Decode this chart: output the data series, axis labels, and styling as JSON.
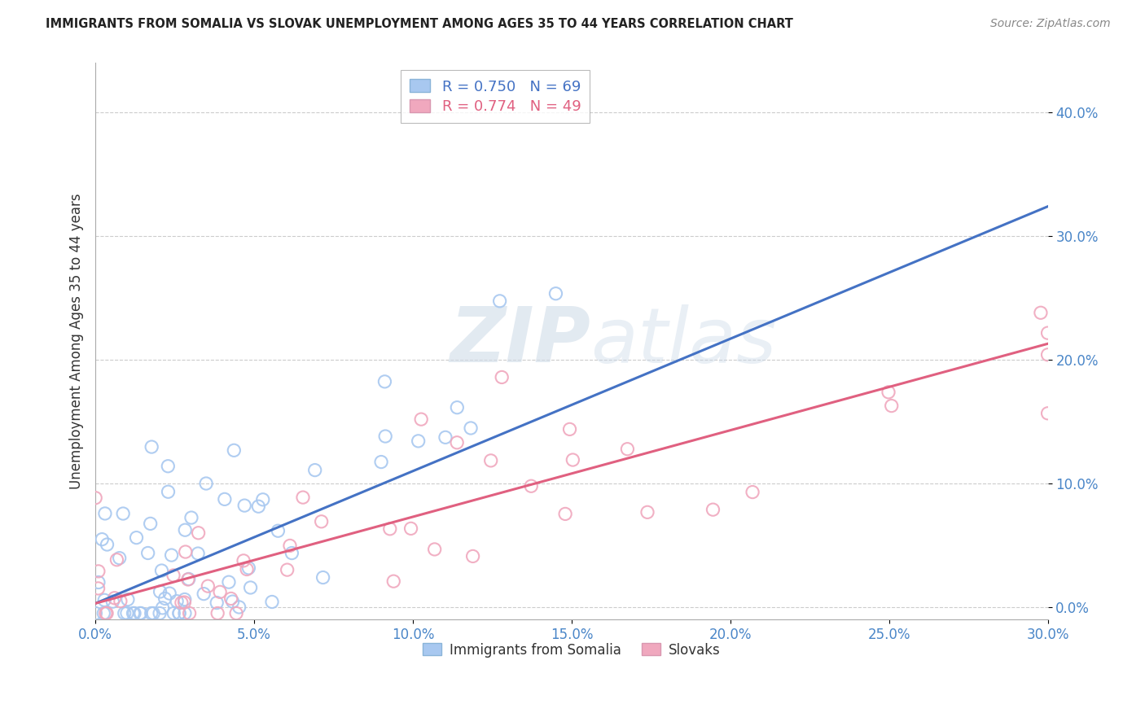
{
  "title": "IMMIGRANTS FROM SOMALIA VS SLOVAK UNEMPLOYMENT AMONG AGES 35 TO 44 YEARS CORRELATION CHART",
  "source": "Source: ZipAtlas.com",
  "ylabel": "Unemployment Among Ages 35 to 44 years",
  "legend_labels": [
    "Immigrants from Somalia",
    "Slovaks"
  ],
  "x_min": 0.0,
  "x_max": 0.3,
  "y_min": -0.01,
  "y_max": 0.44,
  "x_ticks": [
    0.0,
    0.05,
    0.1,
    0.15,
    0.2,
    0.25,
    0.3
  ],
  "y_ticks": [
    0.0,
    0.1,
    0.2,
    0.3,
    0.4
  ],
  "color_somalia": "#a8c8f0",
  "color_slovaks": "#f0a8be",
  "line_color_somalia": "#4472c4",
  "line_color_slovaks": "#e06080",
  "R_somalia": 0.75,
  "N_somalia": 69,
  "R_slovaks": 0.774,
  "N_slovaks": 49,
  "watermark_zip": "ZIP",
  "watermark_atlas": "atlas",
  "background_color": "#ffffff",
  "grid_color": "#cccccc",
  "somalia_slope": 1.08,
  "somalia_intercept": 0.005,
  "slovaks_slope": 0.7,
  "slovaks_intercept": 0.005
}
